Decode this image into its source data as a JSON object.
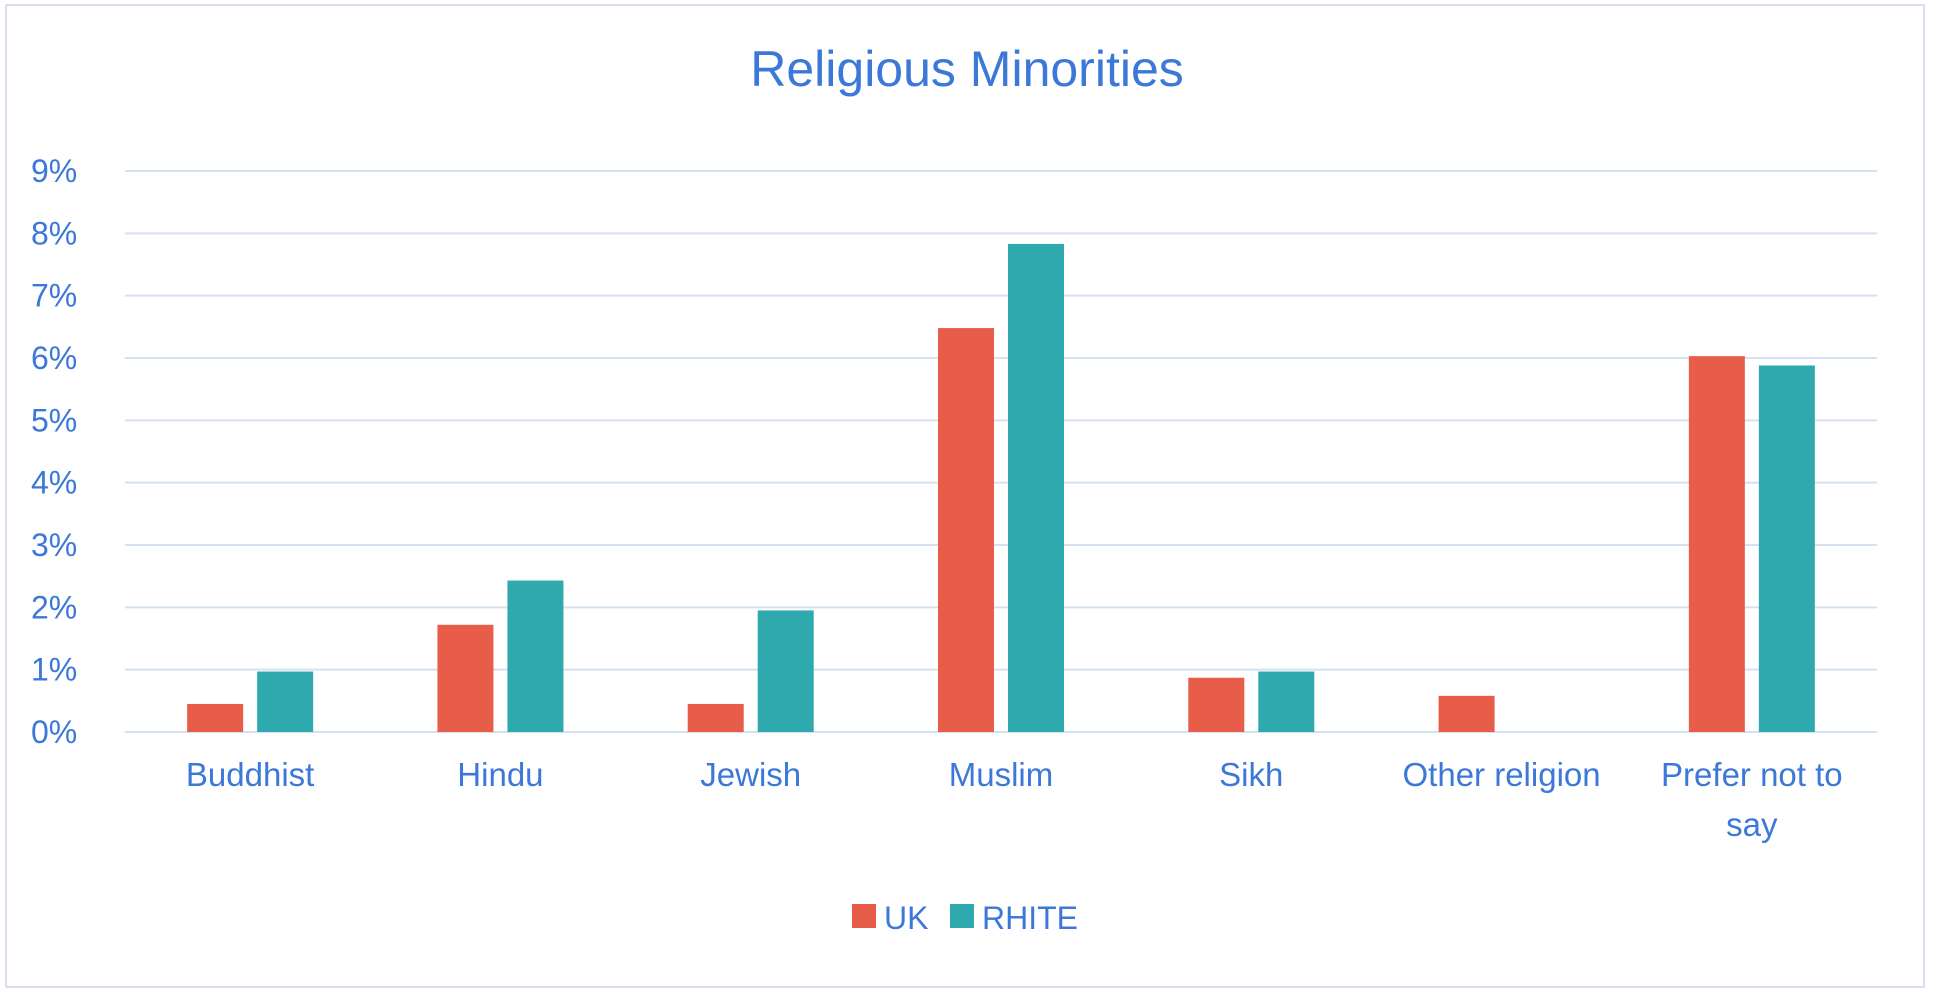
{
  "chart_data": {
    "type": "bar",
    "title": "Religious Minorities",
    "xlabel": "",
    "ylabel": "",
    "ylim": [
      0,
      9
    ],
    "yticks": [
      "0%",
      "1%",
      "2%",
      "3%",
      "4%",
      "5%",
      "6%",
      "7%",
      "8%",
      "9%"
    ],
    "categories": [
      [
        "Buddhist"
      ],
      [
        "Hindu"
      ],
      [
        "Jewish"
      ],
      [
        "Muslim"
      ],
      [
        "Sikh"
      ],
      [
        "Other religion"
      ],
      [
        "Prefer not to",
        "say"
      ]
    ],
    "series": [
      {
        "name": "UK",
        "color": "#e85c4a",
        "values": [
          0.45,
          1.72,
          0.45,
          6.48,
          0.87,
          0.58,
          6.03
        ]
      },
      {
        "name": "RHITE",
        "color": "#2eaaaf",
        "values": [
          0.97,
          2.43,
          1.95,
          7.83,
          0.97,
          0,
          5.88
        ]
      }
    ],
    "grid": true,
    "legend_position": "bottom"
  }
}
